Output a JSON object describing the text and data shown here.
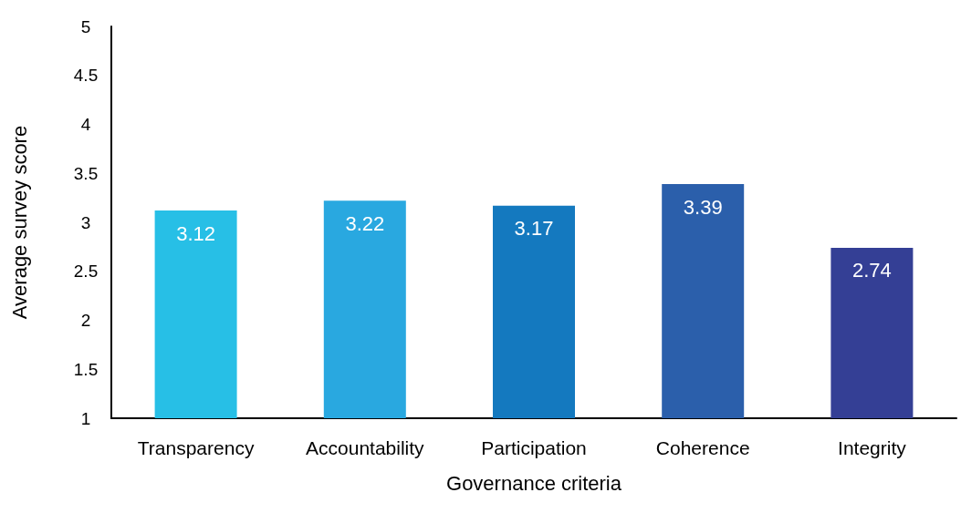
{
  "chart_data": {
    "type": "bar",
    "xlabel": "Governance criteria",
    "ylabel": "Average survey score",
    "categories": [
      "Transparency",
      "Accountability",
      "Participation",
      "Coherence",
      "Integrity"
    ],
    "values": [
      3.12,
      3.22,
      3.17,
      3.39,
      2.74
    ],
    "colors": [
      "#27bfe6",
      "#29a8e0",
      "#1479bf",
      "#2b5fab",
      "#343f95"
    ],
    "ylim": [
      1,
      5
    ],
    "yticks": [
      1,
      1.5,
      2,
      2.5,
      3,
      3.5,
      4,
      4.5,
      5
    ],
    "data_labels": true
  }
}
